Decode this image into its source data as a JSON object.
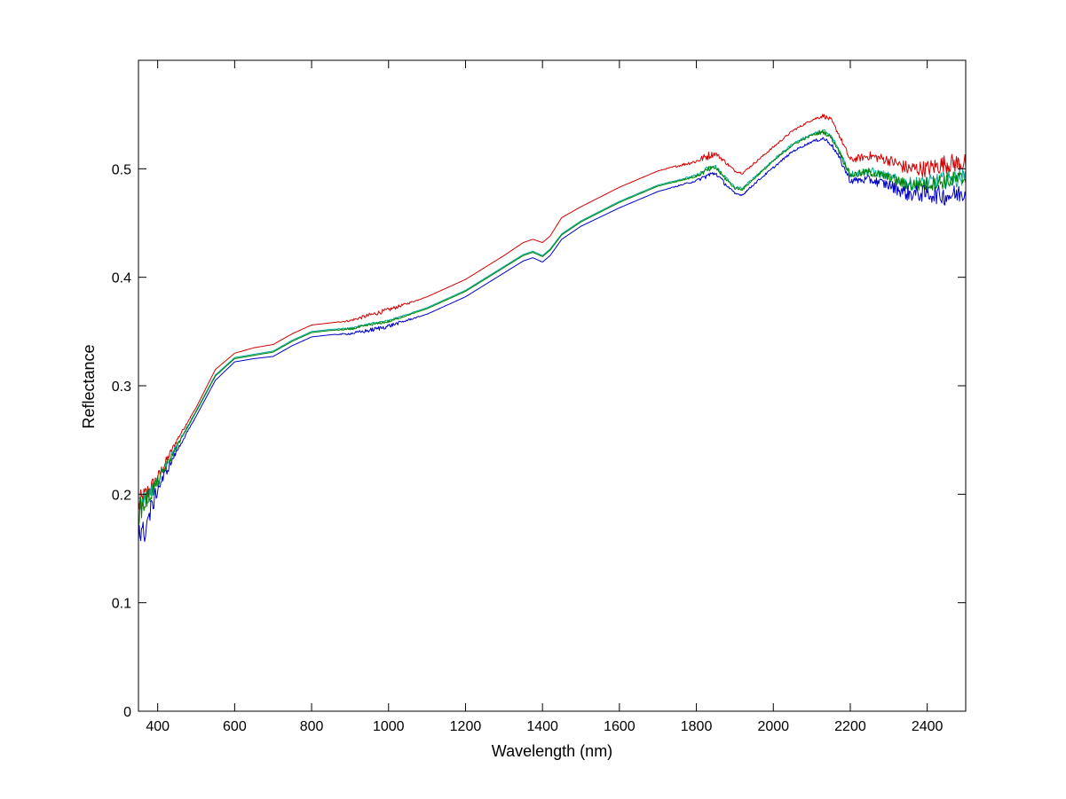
{
  "chart_data": {
    "type": "line",
    "title": "",
    "xlabel": "Wavelength (nm)",
    "ylabel": "Reflectance",
    "xlim": [
      350,
      2500
    ],
    "ylim": [
      0,
      0.6
    ],
    "xticks": [
      400,
      600,
      800,
      1000,
      1200,
      1400,
      1600,
      1800,
      2000,
      2200,
      2400
    ],
    "yticks": [
      0,
      0.1,
      0.2,
      0.3,
      0.4,
      0.5
    ],
    "xtick_labels": [
      "400",
      "600",
      "800",
      "1000",
      "1200",
      "1400",
      "1600",
      "1800",
      "2000",
      "2200",
      "2400"
    ],
    "ytick_labels": [
      "0",
      "0.1",
      "0.2",
      "0.3",
      "0.4",
      "0.5"
    ],
    "grid": false,
    "legend": null,
    "series": [
      {
        "color": "#d40000",
        "x": [
          350,
          400,
          450,
          500,
          550,
          600,
          650,
          700,
          750,
          800,
          850,
          900,
          950,
          1000,
          1100,
          1200,
          1300,
          1350,
          1375,
          1400,
          1420,
          1450,
          1500,
          1600,
          1700,
          1800,
          1830,
          1850,
          1870,
          1900,
          1920,
          1950,
          2000,
          2050,
          2100,
          2130,
          2150,
          2170,
          2200,
          2250,
          2300,
          2350,
          2400,
          2450,
          2500
        ],
        "y": [
          0.19,
          0.215,
          0.25,
          0.28,
          0.315,
          0.33,
          0.335,
          0.338,
          0.348,
          0.356,
          0.358,
          0.36,
          0.365,
          0.37,
          0.382,
          0.398,
          0.42,
          0.432,
          0.435,
          0.432,
          0.438,
          0.455,
          0.465,
          0.483,
          0.498,
          0.507,
          0.512,
          0.514,
          0.508,
          0.498,
          0.496,
          0.505,
          0.52,
          0.535,
          0.545,
          0.549,
          0.545,
          0.532,
          0.508,
          0.512,
          0.508,
          0.5,
          0.5,
          0.505,
          0.505
        ],
        "noise": [
          0.012,
          0.006,
          0.002,
          0,
          0,
          0,
          0,
          0,
          0,
          0,
          0,
          0.001,
          0.002,
          0.002,
          0,
          0,
          0,
          0,
          0,
          0,
          0,
          0,
          0,
          0,
          0,
          0.002,
          0.004,
          0.002,
          0.002,
          0.001,
          0.001,
          0.001,
          0.001,
          0.001,
          0.001,
          0.002,
          0.002,
          0.002,
          0.003,
          0.004,
          0.005,
          0.007,
          0.008,
          0.009,
          0.009
        ]
      },
      {
        "color": "#00a99d",
        "x": [
          350,
          400,
          450,
          500,
          550,
          600,
          650,
          700,
          750,
          800,
          850,
          900,
          950,
          1000,
          1100,
          1200,
          1300,
          1350,
          1375,
          1400,
          1420,
          1450,
          1500,
          1600,
          1700,
          1800,
          1830,
          1850,
          1870,
          1900,
          1920,
          1950,
          2000,
          2050,
          2100,
          2130,
          2150,
          2170,
          2200,
          2250,
          2300,
          2350,
          2400,
          2450,
          2500
        ],
        "y": [
          0.185,
          0.212,
          0.245,
          0.277,
          0.31,
          0.326,
          0.329,
          0.332,
          0.342,
          0.35,
          0.352,
          0.353,
          0.357,
          0.36,
          0.372,
          0.388,
          0.41,
          0.421,
          0.424,
          0.42,
          0.426,
          0.44,
          0.452,
          0.47,
          0.485,
          0.494,
          0.5,
          0.502,
          0.494,
          0.483,
          0.482,
          0.492,
          0.508,
          0.523,
          0.532,
          0.535,
          0.53,
          0.518,
          0.495,
          0.498,
          0.493,
          0.486,
          0.487,
          0.49,
          0.492
        ],
        "noise": [
          0.012,
          0.006,
          0.002,
          0,
          0,
          0,
          0,
          0,
          0,
          0,
          0,
          0.001,
          0.001,
          0.001,
          0,
          0,
          0,
          0,
          0,
          0,
          0,
          0,
          0,
          0,
          0,
          0.001,
          0.003,
          0.002,
          0.002,
          0.001,
          0.001,
          0.001,
          0.001,
          0.001,
          0.001,
          0.002,
          0.002,
          0.002,
          0.003,
          0.004,
          0.004,
          0.006,
          0.007,
          0.008,
          0.008
        ]
      },
      {
        "color": "#008000",
        "x": [
          350,
          400,
          450,
          500,
          550,
          600,
          650,
          700,
          750,
          800,
          850,
          900,
          950,
          1000,
          1100,
          1200,
          1300,
          1350,
          1375,
          1400,
          1420,
          1450,
          1500,
          1600,
          1700,
          1800,
          1830,
          1850,
          1870,
          1900,
          1920,
          1950,
          2000,
          2050,
          2100,
          2130,
          2150,
          2170,
          2200,
          2250,
          2300,
          2350,
          2400,
          2450,
          2500
        ],
        "y": [
          0.183,
          0.211,
          0.244,
          0.276,
          0.309,
          0.325,
          0.328,
          0.331,
          0.341,
          0.349,
          0.351,
          0.352,
          0.356,
          0.359,
          0.371,
          0.387,
          0.409,
          0.42,
          0.423,
          0.419,
          0.425,
          0.439,
          0.451,
          0.469,
          0.484,
          0.493,
          0.499,
          0.501,
          0.493,
          0.482,
          0.481,
          0.491,
          0.507,
          0.522,
          0.531,
          0.534,
          0.529,
          0.517,
          0.494,
          0.497,
          0.492,
          0.485,
          0.486,
          0.489,
          0.491
        ],
        "noise": [
          0.012,
          0.006,
          0.002,
          0,
          0,
          0,
          0,
          0,
          0,
          0,
          0,
          0.001,
          0.001,
          0.001,
          0,
          0,
          0,
          0,
          0,
          0,
          0,
          0,
          0,
          0,
          0,
          0.001,
          0.003,
          0.002,
          0.002,
          0.001,
          0.001,
          0.001,
          0.001,
          0.001,
          0.001,
          0.002,
          0.002,
          0.002,
          0.003,
          0.004,
          0.004,
          0.006,
          0.007,
          0.008,
          0.008
        ]
      },
      {
        "color": "#0000c8",
        "x": [
          350,
          360,
          400,
          450,
          500,
          550,
          600,
          650,
          700,
          750,
          800,
          850,
          900,
          950,
          1000,
          1100,
          1200,
          1300,
          1350,
          1375,
          1400,
          1420,
          1450,
          1500,
          1600,
          1700,
          1800,
          1830,
          1850,
          1870,
          1900,
          1920,
          1950,
          2000,
          2050,
          2100,
          2130,
          2150,
          2170,
          2200,
          2250,
          2300,
          2350,
          2400,
          2450,
          2500
        ],
        "y": [
          0.17,
          0.16,
          0.205,
          0.24,
          0.272,
          0.305,
          0.322,
          0.325,
          0.327,
          0.337,
          0.345,
          0.347,
          0.348,
          0.351,
          0.355,
          0.366,
          0.382,
          0.404,
          0.415,
          0.418,
          0.414,
          0.42,
          0.435,
          0.447,
          0.464,
          0.479,
          0.489,
          0.494,
          0.496,
          0.488,
          0.477,
          0.476,
          0.486,
          0.501,
          0.516,
          0.525,
          0.528,
          0.523,
          0.511,
          0.489,
          0.49,
          0.485,
          0.477,
          0.477,
          0.475,
          0.478
        ],
        "noise": [
          0.014,
          0.014,
          0.006,
          0.002,
          0,
          0,
          0,
          0,
          0,
          0,
          0,
          0,
          0.001,
          0.002,
          0.002,
          0,
          0,
          0,
          0,
          0,
          0,
          0,
          0,
          0,
          0,
          0,
          0.001,
          0.003,
          0.002,
          0.002,
          0.001,
          0.001,
          0.001,
          0.001,
          0.001,
          0.001,
          0.002,
          0.002,
          0.002,
          0.003,
          0.004,
          0.005,
          0.007,
          0.008,
          0.009,
          0.009
        ]
      }
    ]
  }
}
